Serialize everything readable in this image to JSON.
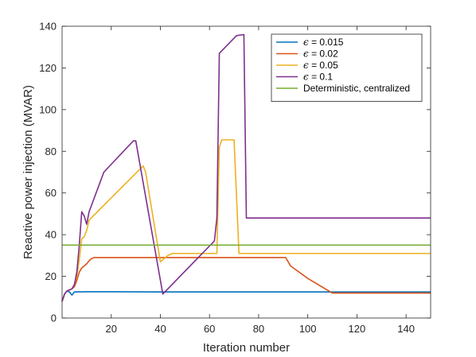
{
  "chart_data": {
    "type": "line",
    "xlabel": "Iteration number",
    "ylabel": "Reactive power injection (MVAR)",
    "xlim": [
      0,
      150
    ],
    "ylim": [
      0,
      140
    ],
    "xticks": [
      20,
      40,
      60,
      80,
      100,
      120,
      140
    ],
    "yticks": [
      0,
      20,
      40,
      60,
      80,
      100,
      120,
      140
    ],
    "grid": false,
    "legend_position": "top-right",
    "series": [
      {
        "name": "ϵ = 0.015",
        "legend_symbol": "ϵ",
        "legend_rest": " = 0.015",
        "color": "#0072BD",
        "points": [
          [
            0,
            8
          ],
          [
            1,
            11.5
          ],
          [
            2,
            13
          ],
          [
            3,
            12.5
          ],
          [
            4,
            11
          ],
          [
            5,
            12.5
          ],
          [
            10,
            12.6
          ],
          [
            20,
            12.6
          ],
          [
            40,
            12.5
          ],
          [
            60,
            12.5
          ],
          [
            80,
            12.5
          ],
          [
            100,
            12.5
          ],
          [
            110,
            12.5
          ],
          [
            150,
            12.5
          ]
        ]
      },
      {
        "name": "ϵ = 0.02",
        "legend_symbol": "ϵ",
        "legend_rest": " = 0.02",
        "color": "#D95319",
        "points": [
          [
            0,
            8
          ],
          [
            1,
            11.5
          ],
          [
            2,
            13
          ],
          [
            3,
            13.5
          ],
          [
            4,
            14
          ],
          [
            5,
            15
          ],
          [
            6,
            18
          ],
          [
            7,
            22
          ],
          [
            8,
            24
          ],
          [
            9,
            25
          ],
          [
            10,
            26
          ],
          [
            11,
            27.5
          ],
          [
            12,
            28.5
          ],
          [
            13,
            29
          ],
          [
            20,
            29
          ],
          [
            40,
            29
          ],
          [
            60,
            29
          ],
          [
            80,
            29
          ],
          [
            91,
            29
          ],
          [
            93,
            25
          ],
          [
            100,
            19
          ],
          [
            110,
            12
          ],
          [
            150,
            12
          ]
        ]
      },
      {
        "name": "ϵ = 0.05",
        "legend_symbol": "ϵ",
        "legend_rest": " = 0.05",
        "color": "#EDB120",
        "points": [
          [
            0,
            8
          ],
          [
            1,
            11.5
          ],
          [
            2,
            13
          ],
          [
            3,
            13.5
          ],
          [
            4,
            14
          ],
          [
            5,
            16
          ],
          [
            6,
            20
          ],
          [
            7,
            28
          ],
          [
            8,
            38
          ],
          [
            9,
            39
          ],
          [
            10,
            42
          ],
          [
            11,
            47
          ],
          [
            33,
            73
          ],
          [
            34,
            70
          ],
          [
            40,
            27
          ],
          [
            42,
            29
          ],
          [
            43,
            30
          ],
          [
            45,
            31
          ],
          [
            63,
            31
          ],
          [
            64,
            82
          ],
          [
            65,
            85.5
          ],
          [
            70,
            85.5
          ],
          [
            72,
            31
          ],
          [
            150,
            31
          ]
        ]
      },
      {
        "name": "ϵ = 0.1",
        "legend_symbol": "ϵ",
        "legend_rest": " = 0.1",
        "color": "#7E2F8E",
        "points": [
          [
            0,
            8
          ],
          [
            1,
            11.5
          ],
          [
            2,
            13
          ],
          [
            3,
            13.5
          ],
          [
            4,
            14
          ],
          [
            5,
            16
          ],
          [
            6,
            22
          ],
          [
            7,
            35
          ],
          [
            8,
            51
          ],
          [
            9,
            49
          ],
          [
            10,
            45
          ],
          [
            11,
            51
          ],
          [
            17,
            70
          ],
          [
            29,
            85
          ],
          [
            30,
            85
          ],
          [
            41,
            11.5
          ],
          [
            62,
            37
          ],
          [
            63,
            48
          ],
          [
            64,
            127
          ],
          [
            71,
            135.5
          ],
          [
            74,
            136
          ],
          [
            75,
            48
          ],
          [
            150,
            48
          ]
        ]
      },
      {
        "name": "Deterministic, centralized",
        "color": "#77AC30",
        "points": [
          [
            0,
            35
          ],
          [
            150,
            35
          ]
        ]
      }
    ]
  }
}
